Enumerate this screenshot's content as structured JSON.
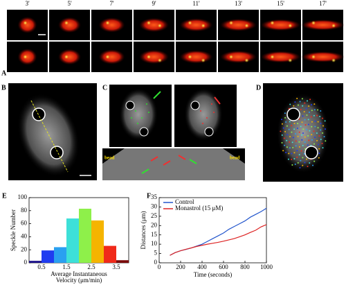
{
  "panels": {
    "A": {
      "label": "A",
      "times": [
        "3'",
        "5'",
        "7'",
        "9'",
        "11'",
        "13'",
        "15'",
        "17'"
      ]
    },
    "B": {
      "label": "B"
    },
    "C": {
      "label": "C",
      "bead_labels": [
        "bead",
        "bead"
      ]
    },
    "D": {
      "label": "D"
    },
    "E": {
      "label": "E"
    },
    "F": {
      "label": "F"
    }
  },
  "chart_data": [
    {
      "type": "histogram",
      "y_label": "Speckle Number",
      "x_label": [
        "Average Instantaneous",
        "Velocity (μm/min)"
      ],
      "bins": [
        0,
        0.5,
        1,
        1.5,
        2,
        2.5,
        3,
        3.5,
        4
      ],
      "counts": [
        3,
        19,
        24,
        68,
        83,
        65,
        26,
        4
      ],
      "colors": [
        "#1a0f8a",
        "#1f3cf0",
        "#2aa0f0",
        "#3de0d8",
        "#8ef04a",
        "#f5b400",
        "#f02a1a",
        "#7a0a0a"
      ],
      "xlim": [
        0,
        4
      ],
      "xticks": [
        0.5,
        1.5,
        2.5,
        3.5
      ],
      "ylim": [
        0,
        100
      ],
      "yticks": [
        0,
        20,
        40,
        60,
        80,
        100
      ]
    },
    {
      "type": "line",
      "y_label": "Distances (μm)",
      "x_label": "Time (seconds)",
      "legend": "upper-left",
      "x": [
        100,
        150,
        200,
        250,
        300,
        350,
        400,
        450,
        500,
        550,
        600,
        650,
        700,
        750,
        800,
        850,
        900,
        950,
        1000
      ],
      "series": [
        {
          "name": "Control",
          "color": "#2255cc",
          "values": [
            4,
            5.5,
            6.5,
            7.2,
            8,
            9,
            10,
            11.5,
            13,
            14.5,
            16,
            18,
            19.5,
            21,
            22.5,
            24.5,
            26,
            27.5,
            29.3
          ]
        },
        {
          "name": "Monastrol (15 μM)",
          "color": "#dd2222",
          "values": [
            4,
            5.5,
            6.5,
            7.3,
            8,
            8.8,
            9.4,
            10,
            10.5,
            11,
            11.6,
            12.3,
            13,
            14,
            15,
            16.3,
            17.5,
            19.3,
            20.5
          ]
        }
      ],
      "xlim": [
        0,
        1000
      ],
      "xticks": [
        0,
        200,
        400,
        600,
        800,
        1000
      ],
      "ylim": [
        0,
        35
      ],
      "yticks": [
        0,
        5,
        10,
        15,
        20,
        25,
        30,
        35
      ]
    }
  ]
}
